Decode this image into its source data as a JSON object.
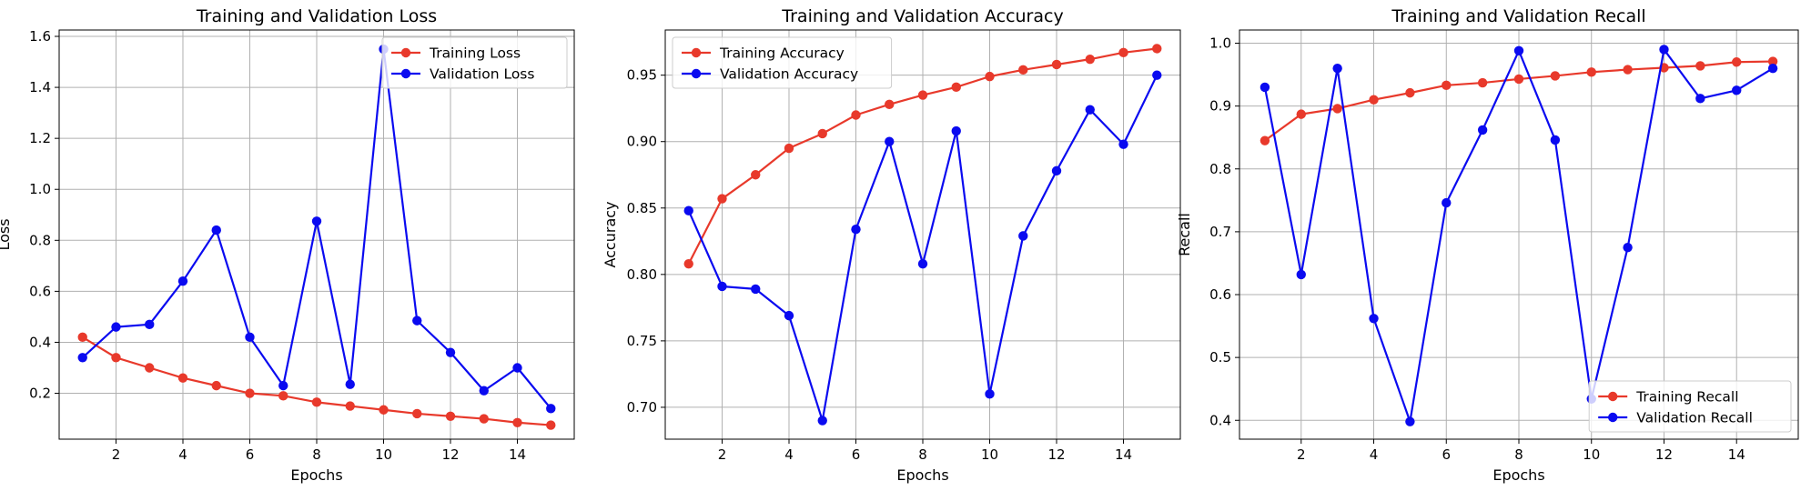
{
  "chart_data": [
    {
      "type": "line",
      "title": "Training and Validation Loss",
      "xlabel": "Epochs",
      "ylabel": "Loss",
      "x": [
        1,
        2,
        3,
        4,
        5,
        6,
        7,
        8,
        9,
        10,
        11,
        12,
        13,
        14,
        15
      ],
      "xlim": [
        0.3,
        15.7
      ],
      "ylim": [
        0.02,
        1.625
      ],
      "xticks": [
        2,
        4,
        6,
        8,
        10,
        12,
        14
      ],
      "yticks": [
        0.2,
        0.4,
        0.6,
        0.8,
        1.0,
        1.2,
        1.4,
        1.6
      ],
      "ytick_labels": [
        "0.2",
        "0.4",
        "0.6",
        "0.8",
        "1.0",
        "1.2",
        "1.4",
        "1.6"
      ],
      "grid": true,
      "legend_position": "upper-right",
      "series": [
        {
          "name": "Training Loss",
          "color": "#e8392b",
          "values": [
            0.42,
            0.34,
            0.3,
            0.26,
            0.23,
            0.2,
            0.19,
            0.165,
            0.15,
            0.135,
            0.12,
            0.11,
            0.1,
            0.085,
            0.075
          ]
        },
        {
          "name": "Validation Loss",
          "color": "#0a0af0",
          "values": [
            0.34,
            0.46,
            0.47,
            0.64,
            0.84,
            0.42,
            0.23,
            0.875,
            0.235,
            1.55,
            0.485,
            0.36,
            0.21,
            0.3,
            0.14
          ]
        }
      ]
    },
    {
      "type": "line",
      "title": "Training and Validation Accuracy",
      "xlabel": "Epochs",
      "ylabel": "Accuracy",
      "x": [
        1,
        2,
        3,
        4,
        5,
        6,
        7,
        8,
        9,
        10,
        11,
        12,
        13,
        14,
        15
      ],
      "xlim": [
        0.3,
        15.7
      ],
      "ylim": [
        0.676,
        0.984
      ],
      "xticks": [
        2,
        4,
        6,
        8,
        10,
        12,
        14
      ],
      "yticks": [
        0.7,
        0.75,
        0.8,
        0.85,
        0.9,
        0.95
      ],
      "ytick_labels": [
        "0.70",
        "0.75",
        "0.80",
        "0.85",
        "0.90",
        "0.95"
      ],
      "grid": true,
      "legend_position": "upper-left",
      "series": [
        {
          "name": "Training Accuracy",
          "color": "#e8392b",
          "values": [
            0.808,
            0.857,
            0.875,
            0.895,
            0.906,
            0.92,
            0.928,
            0.935,
            0.941,
            0.949,
            0.954,
            0.958,
            0.962,
            0.967,
            0.97
          ]
        },
        {
          "name": "Validation Accuracy",
          "color": "#0a0af0",
          "values": [
            0.848,
            0.791,
            0.789,
            0.769,
            0.69,
            0.834,
            0.9,
            0.808,
            0.908,
            0.71,
            0.829,
            0.878,
            0.924,
            0.898,
            0.95
          ]
        }
      ]
    },
    {
      "type": "line",
      "title": "Training and Validation Recall",
      "xlabel": "Epochs",
      "ylabel": "Recall",
      "x": [
        1,
        2,
        3,
        4,
        5,
        6,
        7,
        8,
        9,
        10,
        11,
        12,
        13,
        14,
        15
      ],
      "xlim": [
        0.3,
        15.7
      ],
      "ylim": [
        0.37,
        1.021
      ],
      "xticks": [
        2,
        4,
        6,
        8,
        10,
        12,
        14
      ],
      "yticks": [
        0.4,
        0.5,
        0.6,
        0.7,
        0.8,
        0.9,
        1.0
      ],
      "ytick_labels": [
        "0.4",
        "0.5",
        "0.6",
        "0.7",
        "0.8",
        "0.9",
        "1.0"
      ],
      "grid": true,
      "legend_position": "lower-right",
      "series": [
        {
          "name": "Training Recall",
          "color": "#e8392b",
          "values": [
            0.845,
            0.887,
            0.896,
            0.91,
            0.921,
            0.933,
            0.937,
            0.943,
            0.948,
            0.954,
            0.958,
            0.961,
            0.964,
            0.97,
            0.971
          ]
        },
        {
          "name": "Validation Recall",
          "color": "#0a0af0",
          "values": [
            0.93,
            0.632,
            0.96,
            0.562,
            0.398,
            0.746,
            0.862,
            0.988,
            0.846,
            0.434,
            0.675,
            0.99,
            0.912,
            0.925,
            0.96
          ]
        }
      ]
    }
  ]
}
